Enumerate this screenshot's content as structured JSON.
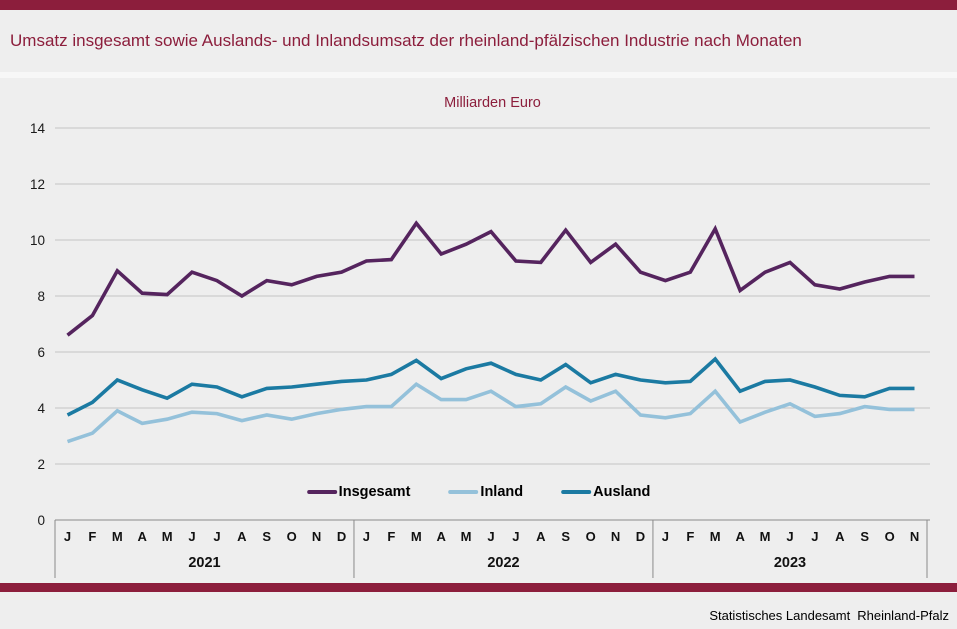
{
  "page": {
    "title": "Umsatz insgesamt sowie Auslands- und Inlandsumsatz der rheinland-pfälzischen Industrie nach Monaten",
    "source_left": "Statistisches Landesamt",
    "source_right": "Rheinland-Pfalz"
  },
  "colors": {
    "accent_bar": "#8c1e3c",
    "title_text": "#8c1e3c",
    "gridline": "#c4c4c4",
    "axis": "#8a8a8a",
    "background": "#eeeeee",
    "insgesamt": "#55245e",
    "inland": "#94c1da",
    "ausland": "#1b7aa2"
  },
  "chart_data": {
    "type": "line",
    "title": "Milliarden Euro",
    "ylabel": "",
    "xlabel": "",
    "ylim": [
      0,
      14
    ],
    "yticks": [
      "0",
      "2",
      "4",
      "6",
      "8",
      "10",
      "12",
      "14"
    ],
    "grid": true,
    "legend_position": "bottom-inside",
    "x_groups": [
      {
        "year": "2021",
        "months": [
          "J",
          "F",
          "M",
          "A",
          "M",
          "J",
          "J",
          "A",
          "S",
          "O",
          "N",
          "D"
        ]
      },
      {
        "year": "2022",
        "months": [
          "J",
          "F",
          "M",
          "A",
          "M",
          "J",
          "J",
          "A",
          "S",
          "O",
          "N",
          "D"
        ]
      },
      {
        "year": "2023",
        "months": [
          "J",
          "F",
          "M",
          "A",
          "M",
          "J",
          "J",
          "A",
          "S",
          "O",
          "N"
        ]
      }
    ],
    "series": [
      {
        "name": "Insgesamt",
        "color": "#55245e",
        "values": [
          6.6,
          7.3,
          8.9,
          8.1,
          8.05,
          8.85,
          8.55,
          8.0,
          8.55,
          8.4,
          8.7,
          8.85,
          9.25,
          9.3,
          10.6,
          9.5,
          9.85,
          10.3,
          9.25,
          9.2,
          10.35,
          9.2,
          9.85,
          8.85,
          8.55,
          8.85,
          10.4,
          8.2,
          8.85,
          9.2,
          8.4,
          8.25,
          8.5,
          8.7,
          8.7
        ]
      },
      {
        "name": "Inland",
        "color": "#94c1da",
        "values": [
          2.8,
          3.1,
          3.9,
          3.45,
          3.6,
          3.85,
          3.8,
          3.55,
          3.75,
          3.6,
          3.8,
          3.95,
          4.05,
          4.05,
          4.85,
          4.3,
          4.3,
          4.6,
          4.05,
          4.15,
          4.75,
          4.25,
          4.6,
          3.75,
          3.65,
          3.8,
          4.6,
          3.5,
          3.85,
          4.15,
          3.7,
          3.8,
          4.05,
          3.95,
          3.95
        ]
      },
      {
        "name": "Ausland",
        "color": "#1b7aa2",
        "values": [
          3.75,
          4.2,
          5.0,
          4.65,
          4.35,
          4.85,
          4.75,
          4.4,
          4.7,
          4.75,
          4.85,
          4.95,
          5.0,
          5.2,
          5.7,
          5.05,
          5.4,
          5.6,
          5.2,
          5.0,
          5.55,
          4.9,
          5.2,
          5.0,
          4.9,
          4.95,
          5.75,
          4.6,
          4.95,
          5.0,
          4.75,
          4.45,
          4.4,
          4.7,
          4.7
        ]
      }
    ]
  }
}
